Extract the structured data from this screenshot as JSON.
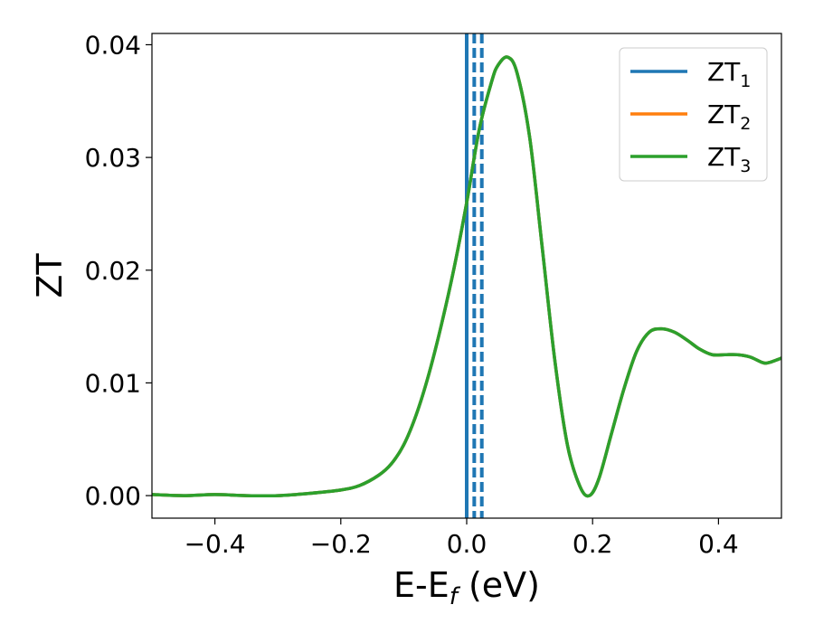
{
  "chart_data": {
    "type": "line",
    "xlabel": "E-E",
    "xlabel_sub": "f",
    "xlabel_suffix": " (eV)",
    "ylabel": "ZT",
    "xlim": [
      -0.5,
      0.5
    ],
    "ylim": [
      -0.002,
      0.041
    ],
    "x_ticks": [
      -0.4,
      -0.2,
      0.0,
      0.2,
      0.4
    ],
    "x_tick_labels": [
      "−0.4",
      "−0.2",
      "0.0",
      "0.2",
      "0.4"
    ],
    "y_ticks": [
      0.0,
      0.01,
      0.02,
      0.03,
      0.04
    ],
    "y_tick_labels": [
      "0.00",
      "0.01",
      "0.02",
      "0.03",
      "0.04"
    ],
    "grid": false,
    "legend_position": "top-right",
    "series": [
      {
        "name": "ZT",
        "sub": "1",
        "color": "#1f77b4"
      },
      {
        "name": "ZT",
        "sub": "2",
        "color": "#ff7f0e"
      },
      {
        "name": "ZT",
        "sub": "3",
        "color": "#2ca02c"
      }
    ],
    "curve": {
      "x": [
        -0.5,
        -0.45,
        -0.4,
        -0.35,
        -0.3,
        -0.25,
        -0.2,
        -0.17,
        -0.14,
        -0.12,
        -0.1,
        -0.08,
        -0.06,
        -0.04,
        -0.02,
        0.0,
        0.02,
        0.04,
        0.05,
        0.065,
        0.08,
        0.1,
        0.12,
        0.14,
        0.16,
        0.18,
        0.195,
        0.21,
        0.23,
        0.25,
        0.27,
        0.29,
        0.31,
        0.33,
        0.35,
        0.37,
        0.39,
        0.41,
        0.43,
        0.45,
        0.47,
        0.48,
        0.5
      ],
      "y": [
        0.0001,
        0.0,
        0.0001,
        0.0,
        0.0,
        0.0002,
        0.0005,
        0.0009,
        0.0018,
        0.0028,
        0.0045,
        0.0072,
        0.0108,
        0.0152,
        0.0202,
        0.026,
        0.0325,
        0.0368,
        0.0382,
        0.0389,
        0.0375,
        0.0318,
        0.022,
        0.012,
        0.0045,
        0.0008,
        0.0,
        0.0015,
        0.0055,
        0.0095,
        0.0128,
        0.0145,
        0.0148,
        0.0145,
        0.0138,
        0.013,
        0.0125,
        0.0125,
        0.0125,
        0.0123,
        0.0118,
        0.0118,
        0.0122
      ]
    },
    "vertical_lines": [
      {
        "x": 0.0,
        "color": "#000000",
        "style": "dashed"
      },
      {
        "x": 0.0,
        "color": "#1f77b4",
        "style": "solid"
      },
      {
        "x": 0.012,
        "color": "#1f77b4",
        "style": "dashed"
      },
      {
        "x": 0.024,
        "color": "#1f77b4",
        "style": "dashed"
      }
    ]
  }
}
